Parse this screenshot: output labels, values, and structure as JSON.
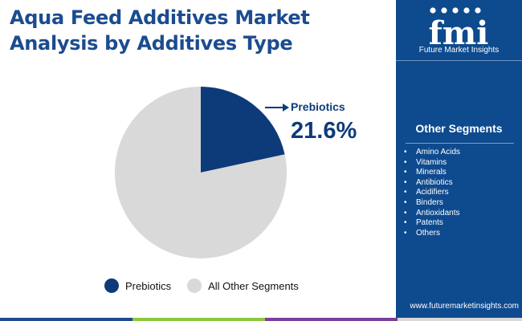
{
  "title": {
    "line1": "Aqua Feed Additives Market",
    "line2": "Analysis by Additives Type"
  },
  "brand": {
    "logo_letters": "fmi",
    "name": "Future Market Insights",
    "url": "www.futuremarketinsights.com",
    "color": "#0e4a8e"
  },
  "chart_data": {
    "type": "pie",
    "slices": [
      {
        "label": "Prebiotics",
        "value": 21.6,
        "value_label": "21.6%",
        "color": "#0d3b7a"
      },
      {
        "label": "All Other Segments",
        "value": 78.4,
        "color": "#d9d9d9"
      }
    ],
    "legend": [
      "Prebiotics",
      "All Other Segments"
    ],
    "legend_position": "bottom",
    "annotation": {
      "label": "Prebiotics",
      "value": "21.6%"
    }
  },
  "other_segments": {
    "title": "Other Segments",
    "items": [
      "Amino Acids",
      "Vitamins",
      "Minerals",
      "Antibiotics",
      "Acidifiers",
      "Binders",
      "Antioxidants",
      "Patents",
      "Others"
    ]
  },
  "accent_bar": [
    "#1b4c8f",
    "#8dc63f",
    "#7b3f98",
    "#d9d9d9"
  ]
}
